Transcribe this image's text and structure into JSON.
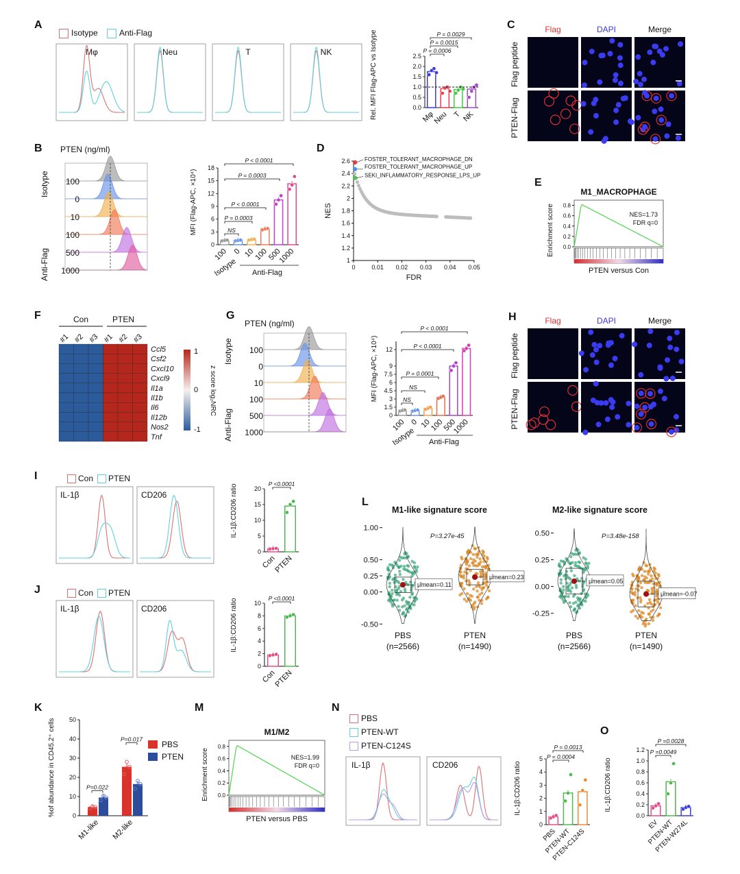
{
  "panelA": {
    "letter": "A",
    "legend": [
      "Isotype",
      "Anti-Flag"
    ],
    "hist_titles": [
      "Mφ",
      "Neu",
      "T",
      "NK"
    ],
    "ylabel": "Rel. MFI Flag-APC vs Isotype",
    "yticks": [
      "0.0",
      "0.5",
      "1.0",
      "1.5",
      "2.0",
      "2.5"
    ],
    "categories": [
      "Mφ",
      "Neu",
      "T",
      "NK"
    ],
    "pvals": [
      "P = 0.0029",
      "P = 0.0015",
      "P = 0.0006"
    ]
  },
  "panelB": {
    "letter": "B",
    "pten_label": "PTEN (ng/ml)",
    "isotype": "Isotype",
    "antiflag": "Anti-Flag",
    "doses": [
      "100",
      "0",
      "10",
      "100",
      "500",
      "1000"
    ],
    "ylabel": "MFI (Flag-APC, ×10⁴)",
    "yticks": [
      "0",
      "3",
      "6",
      "9",
      "12",
      "15",
      "18"
    ],
    "pvals": [
      "P < 0.0001",
      "P = 0.0003",
      "P < 0.0001",
      "P = 0.0003",
      "NS"
    ],
    "group_isotype": "Isotype",
    "group_antiflag": "Anti-Flag"
  },
  "panelC": {
    "letter": "C",
    "headers": [
      "Flag",
      "DAPI",
      "Merge"
    ],
    "rows": [
      "Flag peptide",
      "PTEN-Flag"
    ]
  },
  "panelD": {
    "letter": "D",
    "ylabel": "NES",
    "xlabel": "FDR",
    "yticks": [
      "1",
      "1.2",
      "1.4",
      "1.6",
      "1.8",
      "2",
      "2.2",
      "2.4",
      "2.6"
    ],
    "xticks": [
      "0",
      "0.01",
      "0.02",
      "0.03",
      "0.04",
      "0.05"
    ],
    "annotations": [
      "FOSTER_TOLERANT_MACROPHAGE_DN",
      "FOSTER_TOLERANT_MACROPHAGE_UP",
      "SEKI_INFLAMMATORY_RESPONSE_LPS_UP"
    ]
  },
  "panelE": {
    "letter": "E",
    "title": "M1_MACROPHAGE",
    "ylabel": "Enrichment score",
    "yticks": [
      "0.0",
      "0.2",
      "0.4",
      "0.6",
      "0.8"
    ],
    "nes": "NES=1.73",
    "fdr": "FDR q=0",
    "xlabel": "PTEN versus Con"
  },
  "panelF": {
    "letter": "F",
    "groups": [
      "Con",
      "PTEN"
    ],
    "samples": [
      "#1",
      "#2",
      "#3",
      "#1",
      "#2",
      "#3"
    ],
    "genes": [
      "Ccl5",
      "Csf2",
      "Cxcl10",
      "Cxcl9",
      "Il1a",
      "Il1b",
      "Il6",
      "Il12b",
      "Nos2",
      "Tnf"
    ],
    "scale": [
      "1",
      "0",
      "-1"
    ],
    "scale_label": "z score log₂NRC"
  },
  "panelG": {
    "letter": "G",
    "pten_label": "PTEN (ng/ml)",
    "isotype": "Isotype",
    "antiflag": "Anti-Flag",
    "doses": [
      "100",
      "0",
      "10",
      "100",
      "500",
      "1000"
    ],
    "ylabel": "MFI (Flag-APC, ×10⁴)",
    "yticks": [
      "0",
      "1.5",
      "3",
      "4.5",
      "6",
      "7.5",
      "9",
      "12",
      "15"
    ],
    "pvals": [
      "P < 0.0001",
      "P < 0.0001",
      "P = 0.0001",
      "NS",
      "NS"
    ],
    "group_isotype": "Isotype",
    "group_antiflag": "Anti-Flag"
  },
  "panelH": {
    "letter": "H",
    "headers": [
      "Flag",
      "DAPI",
      "Merge"
    ],
    "rows": [
      "Flag peptide",
      "PTEN-Flag"
    ]
  },
  "panelI": {
    "letter": "I",
    "legend": [
      "Con",
      "PTEN"
    ],
    "hist_titles": [
      "IL-1β",
      "CD206"
    ],
    "ylabel": "IL-1β:CD206 ratio",
    "yticks": [
      "0",
      "5",
      "10",
      "15",
      "20"
    ],
    "categories": [
      "Con",
      "PTEN"
    ],
    "pval": "P <0.0001"
  },
  "panelJ": {
    "letter": "J",
    "legend": [
      "Con",
      "PTEN"
    ],
    "hist_titles": [
      "IL-1β",
      "CD206"
    ],
    "ylabel": "IL-1β:CD206 ratio",
    "yticks": [
      "0",
      "2",
      "4",
      "6",
      "8",
      "10"
    ],
    "categories": [
      "Con",
      "PTEN"
    ],
    "pval": "P <0.0001"
  },
  "panelK": {
    "letter": "K",
    "ylabel": "%of abundance in CD45.2⁺ cells",
    "yticks": [
      "0",
      "10",
      "20",
      "30",
      "40",
      "50"
    ],
    "categories": [
      "M1-like",
      "M2-like"
    ],
    "legend": [
      "PBS",
      "PTEN"
    ],
    "pvals": [
      "P=0.022",
      "P=0.017"
    ]
  },
  "panelL": {
    "letter": "L",
    "titles": [
      "M1-like signature score",
      "M2-like signature score"
    ],
    "left_yticks": [
      "1.00",
      "0.50",
      "0.25",
      "0.00",
      "-0.50"
    ],
    "right_yticks": [
      "0.50",
      "0.25",
      "0.00",
      "-0.25"
    ],
    "left_p": "P=3.27e-45",
    "right_p": "P=3.48e-158",
    "groups": [
      "PBS",
      "PTEN"
    ],
    "counts": [
      "(n=2566)",
      "(n=1490)"
    ],
    "means_left": [
      "μ̂mean=0.11",
      "μ̂mean=0.23"
    ],
    "means_right": [
      "μ̂mean=0.05",
      "μ̂mean=-0.07"
    ]
  },
  "panelM": {
    "letter": "M",
    "title": "M1/M2",
    "ylabel": "Enrichment score",
    "yticks": [
      "0.0",
      "0.2",
      "0.4",
      "0.6",
      "0.8"
    ],
    "nes": "NES=1.99",
    "fdr": "FDR q=0",
    "xlabel": "PTEN versus PBS"
  },
  "panelN": {
    "letter": "N",
    "legend": [
      "PBS",
      "PTEN-WT",
      "PTEN-C124S"
    ],
    "hist_titles": [
      "IL-1β",
      "CD206"
    ],
    "ylabel": "IL-1β:CD206 ratio",
    "yticks": [
      "0",
      "1",
      "2",
      "3",
      "4",
      "5"
    ],
    "categories": [
      "PBS",
      "PTEN-WT",
      "PTEN-C124S"
    ],
    "pvals": [
      "P = 0.0013",
      "P = 0.0004"
    ]
  },
  "panelO": {
    "letter": "O",
    "ylabel": "IL-1β:CD206 ratio",
    "yticks": [
      "0.0",
      "0.2",
      "0.4",
      "0.6",
      "0.8",
      "1.0",
      "1.2"
    ],
    "categories": [
      "EV",
      "PTEN-WT",
      "PTEN-W274L"
    ],
    "pvals": [
      "P =0.0028",
      "P =0.0049"
    ]
  },
  "chart_data": [
    {
      "type": "bar",
      "panel": "A",
      "categories": [
        "Mφ",
        "Neu",
        "T",
        "NK"
      ],
      "values": [
        1.75,
        0.92,
        0.88,
        0.9
      ],
      "ylim": [
        0,
        2.5
      ],
      "ylabel": "Rel. MFI Flag-APC vs Isotype"
    },
    {
      "type": "bar",
      "panel": "B",
      "categories": [
        "100",
        "0",
        "10",
        "100",
        "500",
        "1000"
      ],
      "values": [
        1.0,
        1.0,
        1.2,
        3.7,
        10.5,
        14.3
      ],
      "ylim": [
        0,
        18
      ],
      "ylabel": "MFI (Flag-APC, ×10⁴)"
    },
    {
      "type": "scatter",
      "panel": "D",
      "xlabel": "FDR",
      "ylabel": "NES",
      "xlim": [
        0,
        0.05
      ],
      "ylim": [
        1,
        2.6
      ]
    },
    {
      "type": "line",
      "panel": "E",
      "title": "M1_MACROPHAGE",
      "ylabel": "Enrichment score",
      "ylim": [
        0,
        0.8
      ]
    },
    {
      "type": "heatmap",
      "panel": "F",
      "rows": [
        "Ccl5",
        "Csf2",
        "Cxcl10",
        "Cxcl9",
        "Il1a",
        "Il1b",
        "Il6",
        "Il12b",
        "Nos2",
        "Tnf"
      ],
      "columns": [
        "#1",
        "#2",
        "#3",
        "#1",
        "#2",
        "#3"
      ],
      "values": [
        [
          -1,
          -1,
          -1,
          1,
          1,
          1
        ],
        [
          -1,
          -1,
          -1,
          1,
          1,
          1
        ],
        [
          -1,
          -1,
          -1,
          1,
          1,
          1
        ],
        [
          -1,
          -1,
          -1,
          1,
          1,
          1
        ],
        [
          -1,
          -1,
          -1,
          1,
          1,
          1
        ],
        [
          -1,
          -1,
          -1,
          1,
          1,
          1
        ],
        [
          -1,
          -1,
          -1,
          1,
          1,
          1
        ],
        [
          -1,
          -1,
          -1,
          1,
          1,
          1
        ],
        [
          -1,
          -1,
          -1,
          1,
          1,
          1
        ],
        [
          -1,
          -1,
          -1,
          1,
          1,
          1
        ]
      ]
    },
    {
      "type": "bar",
      "panel": "G",
      "categories": [
        "100",
        "0",
        "10",
        "100",
        "500",
        "1000"
      ],
      "values": [
        0.9,
        0.9,
        1.3,
        3.3,
        9.0,
        12.2
      ],
      "ylim": [
        0,
        15
      ],
      "ylabel": "MFI (Flag-APC, ×10⁴)"
    },
    {
      "type": "bar",
      "panel": "I",
      "categories": [
        "Con",
        "PTEN"
      ],
      "values": [
        1.0,
        14.5
      ],
      "ylim": [
        0,
        20
      ],
      "ylabel": "IL-1β:CD206 ratio"
    },
    {
      "type": "bar",
      "panel": "J",
      "categories": [
        "Con",
        "PTEN"
      ],
      "values": [
        1.8,
        8.0
      ],
      "ylim": [
        0,
        10
      ],
      "ylabel": "IL-1β:CD206 ratio"
    },
    {
      "type": "bar",
      "panel": "K",
      "categories": [
        "M1-like",
        "M2-like"
      ],
      "series": [
        {
          "name": "PBS",
          "values": [
            4.5,
            25.5
          ]
        },
        {
          "name": "PTEN",
          "values": [
            9.5,
            16.5
          ]
        }
      ],
      "ylim": [
        0,
        50
      ]
    },
    {
      "type": "line",
      "panel": "M",
      "title": "M1/M2",
      "ylabel": "Enrichment score",
      "ylim": [
        0,
        0.8
      ]
    },
    {
      "type": "bar",
      "panel": "N",
      "categories": [
        "PBS",
        "PTEN-WT",
        "PTEN-C124S"
      ],
      "values": [
        0.6,
        2.4,
        2.5
      ],
      "ylim": [
        0,
        5
      ],
      "ylabel": "IL-1β:CD206 ratio"
    },
    {
      "type": "bar",
      "panel": "O",
      "categories": [
        "EV",
        "PTEN-WT",
        "PTEN-W274L"
      ],
      "values": [
        0.18,
        0.62,
        0.15
      ],
      "ylim": [
        0,
        1.2
      ],
      "ylabel": "IL-1β:CD206 ratio"
    }
  ]
}
